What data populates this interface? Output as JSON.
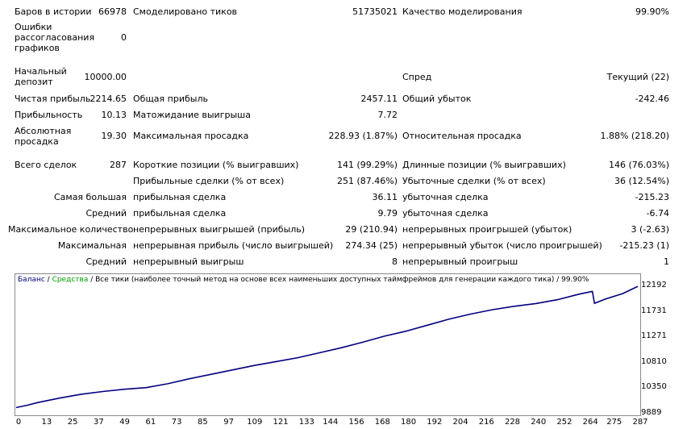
{
  "report": {
    "bars_label": "Баров в истории",
    "bars_value": "66978",
    "ticks_label": "Смоделировано тиков",
    "ticks_value": "51735021",
    "quality_label": "Качество моделирования",
    "quality_value": "99.90%",
    "errors_label_1": "Ошибки",
    "errors_label_2": "рассогласования",
    "errors_label_3": "графиков",
    "errors_value": "0",
    "deposit_label_1": "Начальный",
    "deposit_label_2": "депозит",
    "deposit_value": "10000.00",
    "spread_label": "Спред",
    "spread_value": "Текущий (22)",
    "net_profit_label": "Чистая прибыль",
    "net_profit_value": "2214.65",
    "gross_profit_label": "Общая прибыль",
    "gross_profit_value": "2457.11",
    "gross_loss_label": "Общий убыток",
    "gross_loss_value": "-242.46",
    "profit_factor_label": "Прибыльность",
    "profit_factor_value": "10.13",
    "expected_payoff_label": "Матожидание выигрыша",
    "expected_payoff_value": "7.72",
    "abs_dd_label_1": "Абсолютная",
    "abs_dd_label_2": "просадка",
    "abs_dd_value": "19.30",
    "max_dd_label": "Максимальная просадка",
    "max_dd_value": "228.93 (1.87%)",
    "rel_dd_label": "Относительная просадка",
    "rel_dd_value": "1.88% (218.20)",
    "total_trades_label": "Всего сделок",
    "total_trades_value": "287",
    "short_label": "Короткие позиции (% выигравших)",
    "short_value": "141 (99.29%)",
    "long_label": "Длинные позиции (% выигравших)",
    "long_value": "146 (76.03%)",
    "profit_trades_label": "Прибыльные сделки (% от всех)",
    "profit_trades_value": "251 (87.46%)",
    "loss_trades_label": "Убыточные сделки (% от всех)",
    "loss_trades_value": "36 (12.54%)",
    "largest_label": "Самая большая",
    "largest_profit_label": "прибыльная сделка",
    "largest_profit_value": "36.11",
    "largest_loss_label": "убыточная сделка",
    "largest_loss_value": "-215.23",
    "average_label": "Средний",
    "average_profit_label": "прибыльная сделка",
    "average_profit_value": "9.79",
    "average_loss_label": "убыточная сделка",
    "average_loss_value": "-6.74",
    "max_count_label": "Максимальное количество",
    "max_cons_wins_label": "непрерывных выигрышей (прибыль)",
    "max_cons_wins_value": "29 (210.94)",
    "max_cons_losses_label": "непрерывных проигрышей (убыток)",
    "max_cons_losses_value": "3 (-2.63)",
    "maximal_label": "Максимальная",
    "max_cons_profit_label": "непрерывная прибыль (число выигрышей)",
    "max_cons_profit_value": "274.34 (25)",
    "max_cons_loss_label": "непрерывный убыток (число проигрышей)",
    "max_cons_loss_value": "-215.23 (1)",
    "avg_cons_label": "Средний",
    "avg_cons_wins_label": "непрерывный выигрыш",
    "avg_cons_wins_value": "8",
    "avg_cons_losses_label": "непрерывный проигрыш",
    "avg_cons_losses_value": "1"
  },
  "chart_data": {
    "type": "line",
    "legend": {
      "balance": "Баланс",
      "sep1": " / ",
      "equity": "Средства",
      "rest": " / Все тики (наиболее точный метод на основе всех наименьших доступных таймфреймов для генерации каждого тика) / 99.90%"
    },
    "y_ticks": [
      12192,
      11731,
      11271,
      10810,
      10350,
      9889
    ],
    "x_ticks": [
      0,
      13,
      25,
      37,
      49,
      61,
      73,
      85,
      97,
      109,
      121,
      133,
      144,
      156,
      168,
      180,
      192,
      204,
      216,
      228,
      240,
      252,
      264,
      275,
      287
    ],
    "xlim": [
      0,
      287
    ],
    "ylim": [
      9889,
      12192
    ],
    "series": [
      {
        "color": "#00007f",
        "x": [
          0,
          5,
          10,
          20,
          30,
          40,
          50,
          60,
          70,
          80,
          90,
          100,
          110,
          120,
          130,
          140,
          150,
          160,
          170,
          180,
          190,
          200,
          210,
          220,
          230,
          240,
          250,
          260,
          266,
          267,
          272,
          280,
          287
        ],
        "y": [
          10000,
          10040,
          10090,
          10170,
          10240,
          10290,
          10330,
          10360,
          10430,
          10520,
          10600,
          10680,
          10760,
          10830,
          10900,
          10990,
          11080,
          11180,
          11290,
          11380,
          11490,
          11600,
          11690,
          11770,
          11830,
          11880,
          11950,
          12050,
          12100,
          11885,
          11960,
          12060,
          12190
        ]
      },
      {
        "color": "#00c000",
        "x": [
          0,
          287
        ],
        "y": [
          10000,
          12190
        ]
      }
    ]
  }
}
